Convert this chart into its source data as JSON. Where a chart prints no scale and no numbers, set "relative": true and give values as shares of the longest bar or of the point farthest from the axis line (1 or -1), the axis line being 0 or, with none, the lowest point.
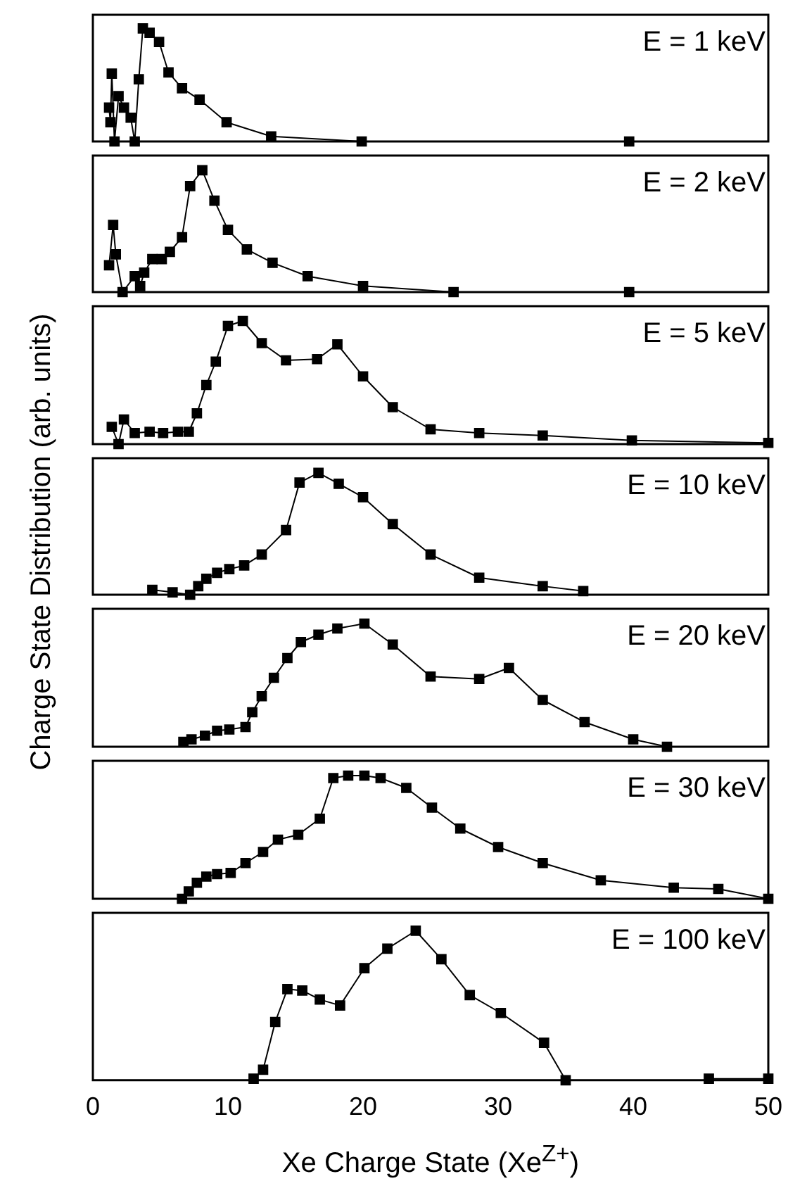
{
  "chart_data": [
    {
      "type": "line",
      "title": "E = 1 keV",
      "relative": true,
      "xlim": [
        0,
        50
      ],
      "tick_labels": false,
      "legend": false,
      "grid": false,
      "marker": "square",
      "line_style": "solid",
      "series": [
        {
          "color": "#000000",
          "x": [
            1.2,
            1.3,
            1.4,
            1.6,
            1.9,
            2.3,
            2.8,
            3.1,
            3.4,
            3.7,
            4.2,
            4.9,
            5.6,
            6.6,
            7.9,
            9.9,
            13.2,
            19.9,
            39.7
          ],
          "values": [
            0.3,
            0.17,
            0.6,
            0.0,
            0.4,
            0.3,
            0.21,
            0.0,
            0.55,
            1.0,
            0.96,
            0.88,
            0.61,
            0.47,
            0.37,
            0.17,
            0.045,
            0.0,
            0.0
          ]
        }
      ]
    },
    {
      "type": "line",
      "title": "E = 2 keV",
      "relative": true,
      "xlim": [
        0,
        50
      ],
      "tick_labels": false,
      "legend": false,
      "grid": false,
      "marker": "square",
      "line_style": "solid",
      "series": [
        {
          "color": "#000000",
          "x": [
            1.2,
            1.5,
            1.7,
            2.2,
            3.1,
            3.5,
            3.8,
            4.4,
            5.1,
            5.7,
            6.6,
            7.2,
            8.1,
            9.0,
            10.0,
            11.4,
            13.3,
            15.9,
            20.0,
            26.7,
            39.7
          ],
          "values": [
            0.22,
            0.55,
            0.31,
            0.0,
            0.13,
            0.05,
            0.16,
            0.27,
            0.27,
            0.33,
            0.45,
            0.87,
            1.0,
            0.75,
            0.51,
            0.35,
            0.24,
            0.13,
            0.05,
            0.0,
            0.0
          ]
        }
      ]
    },
    {
      "type": "line",
      "title": "E = 5 keV",
      "relative": true,
      "xlim": [
        0,
        50
      ],
      "tick_labels": false,
      "legend": false,
      "grid": false,
      "marker": "square",
      "line_style": "solid",
      "series": [
        {
          "color": "#000000",
          "x": [
            1.4,
            1.9,
            2.3,
            3.1,
            4.2,
            5.2,
            6.3,
            7.1,
            7.7,
            8.4,
            9.1,
            10.0,
            11.1,
            12.5,
            14.3,
            16.6,
            18.1,
            20.0,
            22.2,
            25.0,
            28.6,
            33.3,
            39.9,
            50.0
          ],
          "values": [
            0.14,
            0.0,
            0.2,
            0.09,
            0.1,
            0.09,
            0.1,
            0.1,
            0.25,
            0.48,
            0.67,
            0.96,
            1.0,
            0.82,
            0.68,
            0.69,
            0.81,
            0.55,
            0.3,
            0.12,
            0.09,
            0.07,
            0.03,
            0.01
          ]
        }
      ]
    },
    {
      "type": "line",
      "title": "E = 10 keV",
      "ylabel": "Charge State Distribution (arb. units)",
      "relative": true,
      "xlim": [
        0,
        50
      ],
      "tick_labels": false,
      "legend": false,
      "grid": false,
      "marker": "square",
      "line_style": "solid",
      "series": [
        {
          "color": "#000000",
          "x": [
            4.4,
            5.9,
            7.2,
            7.8,
            8.4,
            9.2,
            10.1,
            11.2,
            12.5,
            14.3,
            15.3,
            16.7,
            18.2,
            20.0,
            22.2,
            25.0,
            28.6,
            33.3,
            36.3
          ],
          "values": [
            0.04,
            0.02,
            0.0,
            0.07,
            0.13,
            0.18,
            0.21,
            0.24,
            0.33,
            0.53,
            0.92,
            1.0,
            0.91,
            0.8,
            0.58,
            0.33,
            0.14,
            0.07,
            0.03
          ]
        }
      ]
    },
    {
      "type": "line",
      "title": "E = 20 keV",
      "relative": true,
      "xlim": [
        0,
        50
      ],
      "tick_labels": false,
      "legend": false,
      "grid": false,
      "marker": "square",
      "line_style": "solid",
      "series": [
        {
          "color": "#000000",
          "x": [
            6.7,
            7.3,
            8.3,
            9.2,
            10.1,
            11.3,
            11.8,
            12.5,
            13.4,
            14.4,
            15.4,
            16.7,
            18.1,
            20.1,
            22.2,
            25.0,
            28.6,
            30.8,
            33.3,
            36.4,
            40.0,
            42.5
          ],
          "values": [
            0.04,
            0.06,
            0.09,
            0.13,
            0.14,
            0.16,
            0.28,
            0.41,
            0.56,
            0.72,
            0.85,
            0.91,
            0.96,
            1.0,
            0.83,
            0.57,
            0.55,
            0.64,
            0.38,
            0.2,
            0.06,
            0.0
          ]
        }
      ]
    },
    {
      "type": "line",
      "title": "E = 30 keV",
      "relative": true,
      "xlim": [
        0,
        50
      ],
      "tick_labels": false,
      "legend": false,
      "grid": false,
      "marker": "square",
      "line_style": "solid",
      "series": [
        {
          "color": "#000000",
          "x": [
            6.6,
            7.1,
            7.7,
            8.4,
            9.2,
            10.2,
            11.3,
            12.6,
            13.7,
            15.2,
            16.8,
            17.8,
            18.9,
            20.1,
            21.3,
            23.2,
            25.1,
            27.2,
            30.0,
            33.3,
            37.6,
            43.0,
            46.3,
            50.0
          ],
          "values": [
            0.0,
            0.06,
            0.13,
            0.18,
            0.2,
            0.21,
            0.29,
            0.38,
            0.48,
            0.52,
            0.65,
            0.98,
            1.0,
            1.0,
            0.98,
            0.9,
            0.74,
            0.57,
            0.42,
            0.29,
            0.15,
            0.09,
            0.08,
            0.0
          ]
        }
      ]
    },
    {
      "type": "line",
      "title": "E = 100 keV",
      "xlabel": "Xe Charge State (Xe$^{Z+}$)",
      "relative": true,
      "xlim": [
        0,
        50
      ],
      "xticks": [
        0,
        10,
        20,
        30,
        40,
        50
      ],
      "tick_labels": "x",
      "legend": false,
      "grid": false,
      "marker": "square",
      "line_style": "solid",
      "series": [
        {
          "color": "#000000",
          "x": [
            11.9,
            12.6,
            13.5,
            14.4,
            15.5,
            16.8,
            18.3,
            20.1,
            21.8,
            23.9,
            25.8,
            27.9,
            30.2,
            33.4,
            35.0,
            40.0,
            45.6,
            50.0
          ],
          "values": [
            0.01,
            0.07,
            0.39,
            0.61,
            0.6,
            0.54,
            0.5,
            0.75,
            0.88,
            1.0,
            0.81,
            0.57,
            0.45,
            0.25,
            0.0,
            null,
            0.01,
            0.01
          ]
        }
      ]
    }
  ]
}
